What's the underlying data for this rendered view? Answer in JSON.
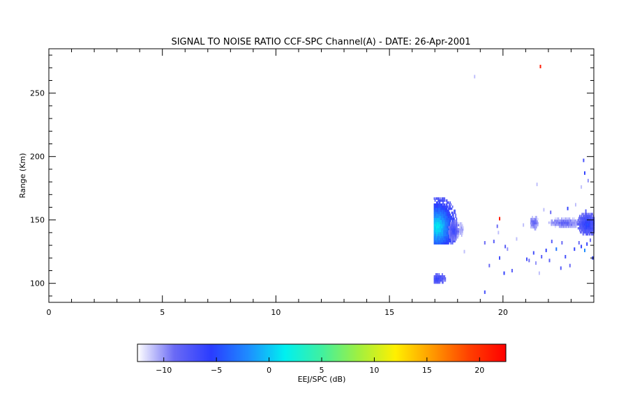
{
  "chart_data": {
    "type": "heatmap",
    "title": "SIGNAL TO NOISE RATIO CCF-SPC Channel(A) - DATE: 26-Apr-2001",
    "xlabel": "",
    "ylabel": "Range (Km)",
    "xlim": [
      0,
      24
    ],
    "ylim": [
      85,
      285
    ],
    "x_ticks": [
      0,
      5,
      10,
      15,
      20
    ],
    "y_ticks": [
      100,
      150,
      200,
      250
    ],
    "grid": false,
    "colorbar": {
      "label": "EEJ/SPC (dB)",
      "range": [
        -12.5,
        22.5
      ],
      "ticks": [
        -10,
        -5,
        0,
        5,
        10,
        15,
        20
      ],
      "colors": [
        "#ffffff",
        "#6a6af5",
        "#2a3cff",
        "#1e8cff",
        "#00f0f0",
        "#40f0a0",
        "#a0f040",
        "#fff000",
        "#ff9a00",
        "#ff4000",
        "#ff0000"
      ]
    },
    "regions": [
      {
        "x": [
          16.95,
          17.95
        ],
        "y": [
          131,
          167
        ],
        "snr_peak": 2,
        "snr_edge": -8,
        "center": [
          17.1,
          144
        ]
      },
      {
        "x": [
          17.6,
          18.05
        ],
        "y": [
          134,
          149
        ],
        "snr_peak": -6,
        "snr_edge": -10,
        "center": [
          17.8,
          141
        ]
      },
      {
        "x": [
          16.95,
          17.45
        ],
        "y": [
          100,
          107
        ],
        "snr_peak": -6,
        "snr_edge": -9,
        "center": [
          17.1,
          103
        ]
      },
      {
        "x": [
          18.05,
          18.25
        ],
        "y": [
          137,
          148
        ],
        "snr_peak": -10,
        "snr_edge": -11,
        "center": [
          18.15,
          142
        ]
      },
      {
        "x": [
          21.2,
          21.55
        ],
        "y": [
          142,
          152
        ],
        "snr_peak": -8,
        "snr_edge": -11,
        "center": [
          21.35,
          147
        ]
      },
      {
        "x": [
          22.0,
          23.35
        ],
        "y": [
          144,
          151
        ],
        "snr_peak": -8,
        "snr_edge": -11,
        "center": [
          22.7,
          147
        ]
      },
      {
        "x": [
          23.25,
          24.0
        ],
        "y": [
          138,
          155
        ],
        "snr_peak": -5,
        "snr_edge": -9,
        "center": [
          23.7,
          146
        ]
      }
    ],
    "points": [
      [
        21.65,
        271,
        21
      ],
      [
        18.75,
        263,
        -11
      ],
      [
        19.85,
        151,
        21
      ],
      [
        19.75,
        145,
        -9
      ],
      [
        23.55,
        197,
        -7
      ],
      [
        23.6,
        187,
        -6
      ],
      [
        23.75,
        181,
        -10
      ],
      [
        23.45,
        176,
        -11
      ],
      [
        22.85,
        159,
        -6
      ],
      [
        23.2,
        162,
        -11
      ],
      [
        21.5,
        178,
        -11
      ],
      [
        22.1,
        156,
        -9
      ],
      [
        23.65,
        157,
        -8
      ],
      [
        20.9,
        146,
        -11
      ],
      [
        21.8,
        158,
        -11
      ],
      [
        19.2,
        132,
        -9
      ],
      [
        19.6,
        133,
        -8
      ],
      [
        19.85,
        120,
        -7
      ],
      [
        20.1,
        129,
        -8
      ],
      [
        20.2,
        127,
        -10
      ],
      [
        20.6,
        135,
        -11
      ],
      [
        21.05,
        119,
        -7
      ],
      [
        21.15,
        118,
        -9
      ],
      [
        21.35,
        124,
        -7
      ],
      [
        21.45,
        116,
        -10
      ],
      [
        21.7,
        121,
        -8
      ],
      [
        21.9,
        126,
        -6
      ],
      [
        22.15,
        133,
        -8
      ],
      [
        22.35,
        127,
        -3
      ],
      [
        22.6,
        132,
        -9
      ],
      [
        22.75,
        121,
        -7
      ],
      [
        22.95,
        114,
        -9
      ],
      [
        23.15,
        127,
        -6
      ],
      [
        23.35,
        132,
        -9
      ],
      [
        23.45,
        129,
        -6
      ],
      [
        23.6,
        126,
        -2
      ],
      [
        23.7,
        131,
        -6
      ],
      [
        23.85,
        134,
        -9
      ],
      [
        23.95,
        120,
        -6
      ],
      [
        20.4,
        110,
        -8
      ],
      [
        19.4,
        114,
        -9
      ],
      [
        19.2,
        93,
        -7
      ],
      [
        20.05,
        108,
        -6
      ],
      [
        22.55,
        112,
        -8
      ],
      [
        21.6,
        108,
        -11
      ],
      [
        22.05,
        118,
        -8
      ],
      [
        18.3,
        125,
        -11
      ],
      [
        19.8,
        140,
        -11
      ]
    ]
  }
}
